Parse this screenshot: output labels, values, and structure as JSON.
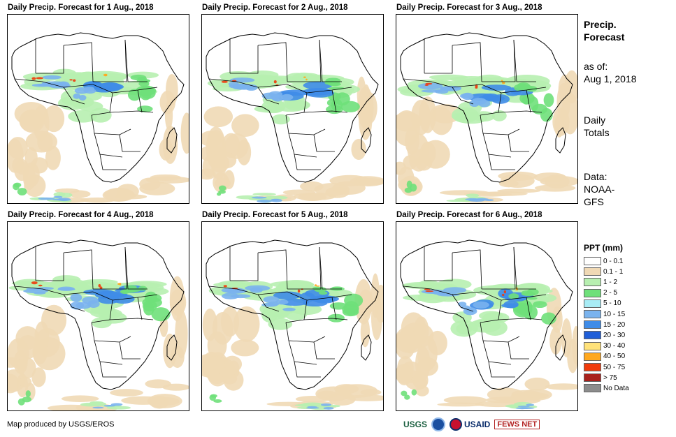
{
  "panels": [
    {
      "title": "Daily Precip. Forecast for 1 Aug., 2018"
    },
    {
      "title": "Daily Precip. Forecast for 2 Aug., 2018"
    },
    {
      "title": "Daily Precip. Forecast for 3 Aug., 2018"
    },
    {
      "title": "Daily Precip. Forecast for 4 Aug., 2018"
    },
    {
      "title": "Daily Precip. Forecast for 5 Aug., 2018"
    },
    {
      "title": "Daily Precip. Forecast for 6 Aug., 2018"
    }
  ],
  "sidebar": {
    "heading_line1": "Precip.",
    "heading_line2": "Forecast",
    "asof_label": "as of:",
    "asof_date": "Aug 1, 2018",
    "totals_line1": "Daily",
    "totals_line2": "Totals",
    "data_line1": "Data:",
    "data_line2": "NOAA-",
    "data_line3": "GFS"
  },
  "legend": {
    "title": "PPT (mm)",
    "items": [
      {
        "label": "0 - 0.1",
        "color": "#ffffff"
      },
      {
        "label": "0.1 - 1",
        "color": "#f0d9b5"
      },
      {
        "label": "1 - 2",
        "color": "#b7efb0"
      },
      {
        "label": "2 - 5",
        "color": "#6fe07a"
      },
      {
        "label": "5 - 10",
        "color": "#a8ecf5"
      },
      {
        "label": "10 - 15",
        "color": "#7ab3ee"
      },
      {
        "label": "15 - 20",
        "color": "#3f8ce8"
      },
      {
        "label": "20 - 30",
        "color": "#1f5ed8"
      },
      {
        "label": "30 - 40",
        "color": "#ffe27a"
      },
      {
        "label": "40 - 50",
        "color": "#ffa81e"
      },
      {
        "label": "50 - 75",
        "color": "#f03b0c"
      },
      {
        "label": "> 75",
        "color": "#a8211c"
      },
      {
        "label": "No Data",
        "color": "#8c8c8c"
      }
    ]
  },
  "credit": "Map produced by USGS/EROS",
  "logos": {
    "usgs": "USGS",
    "usaid": "USAID",
    "fews": "FEWS NET"
  }
}
